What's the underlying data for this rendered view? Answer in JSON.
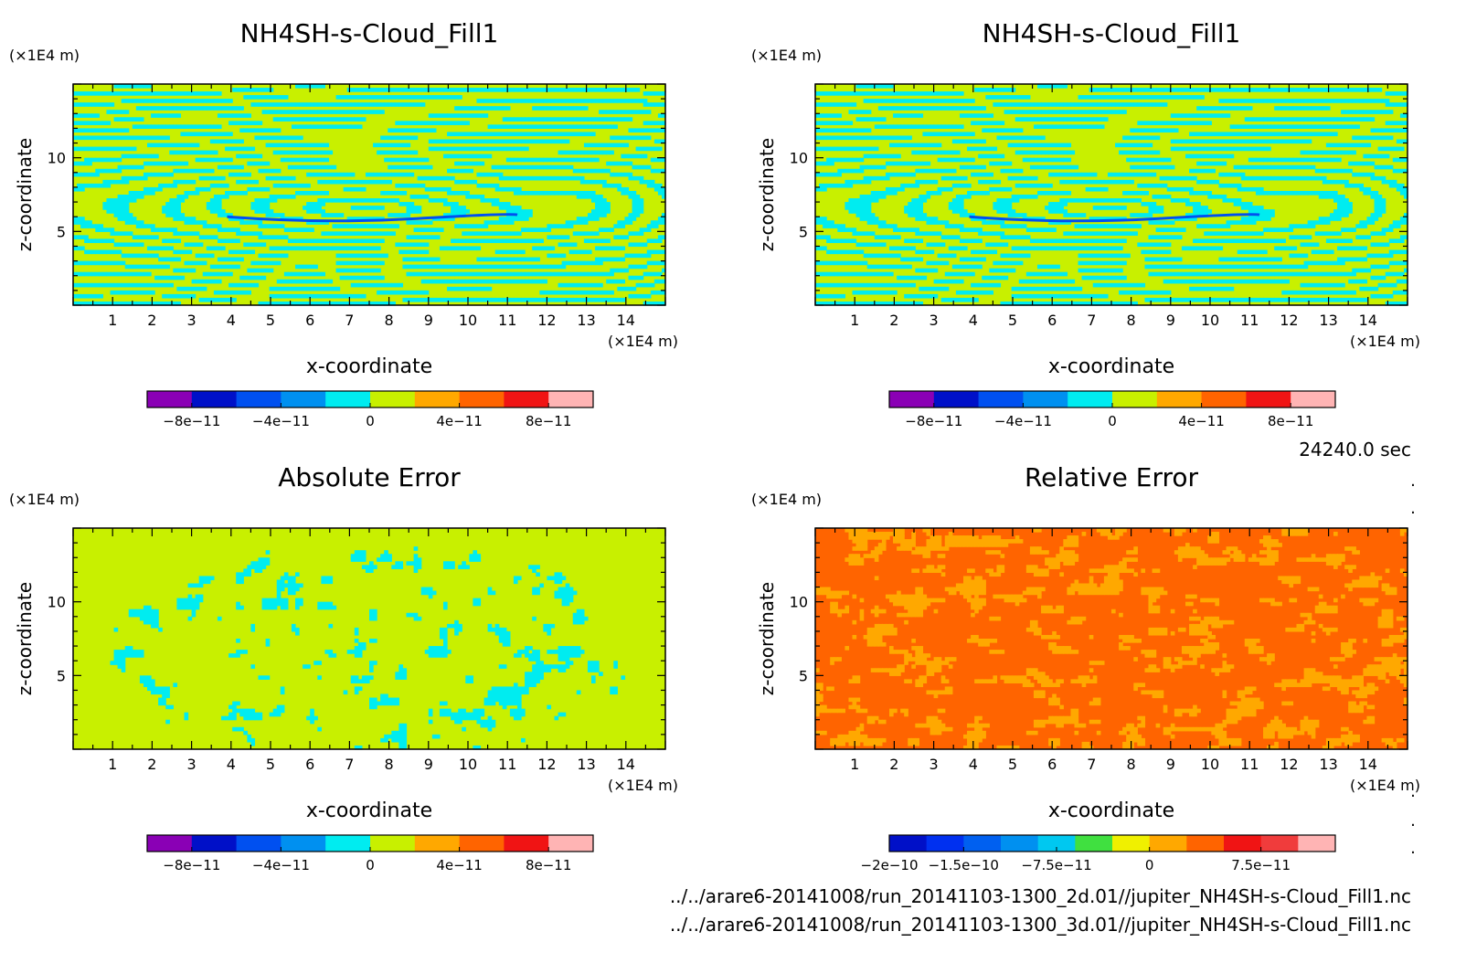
{
  "time_label": "24240.0 sec",
  "files": [
    "../../arare6-20141008/run_20141103-1300_2d.01//jupiter_NH4SH-s-Cloud_Fill1.nc",
    "../../arare6-20141008/run_20141103-1300_3d.01//jupiter_NH4SH-s-Cloud_Fill1.nc"
  ],
  "chart_data": [
    {
      "type": "heatmap",
      "title": "NH4SH-s-Cloud_Fill1",
      "xlabel": "x-coordinate",
      "ylabel": "z-coordinate",
      "x_unit": "(×1E4 m)",
      "y_unit": "(×1E4 m)",
      "xlim": [
        0,
        15
      ],
      "ylim": [
        0,
        15
      ],
      "x_ticks": [
        "1",
        "2",
        "3",
        "4",
        "5",
        "6",
        "7",
        "8",
        "9",
        "10",
        "11",
        "12",
        "13",
        "14"
      ],
      "y_ticks": [
        "5",
        "10"
      ],
      "pattern": "stripes",
      "colorbar": {
        "colors": [
          "#8a00b5",
          "#0010c8",
          "#0050f0",
          "#0090f0",
          "#00ecf0",
          "#c8f000",
          "#ffa800",
          "#ff6400",
          "#f01414",
          "#ffb4b4"
        ],
        "labels": [
          "−8e−11",
          "−4e−11",
          "0",
          "4e−11",
          "8e−11"
        ]
      }
    },
    {
      "type": "heatmap",
      "title": "NH4SH-s-Cloud_Fill1",
      "xlabel": "x-coordinate",
      "ylabel": "z-coordinate",
      "x_unit": "(×1E4 m)",
      "y_unit": "(×1E4 m)",
      "xlim": [
        0,
        15
      ],
      "ylim": [
        0,
        15
      ],
      "x_ticks": [
        "1",
        "2",
        "3",
        "4",
        "5",
        "6",
        "7",
        "8",
        "9",
        "10",
        "11",
        "12",
        "13",
        "14"
      ],
      "y_ticks": [
        "5",
        "10"
      ],
      "pattern": "stripes",
      "colorbar": {
        "colors": [
          "#8a00b5",
          "#0010c8",
          "#0050f0",
          "#0090f0",
          "#00ecf0",
          "#c8f000",
          "#ffa800",
          "#ff6400",
          "#f01414",
          "#ffb4b4"
        ],
        "labels": [
          "−8e−11",
          "−4e−11",
          "0",
          "4e−11",
          "8e−11"
        ]
      }
    },
    {
      "type": "heatmap",
      "title": "Absolute Error",
      "xlabel": "x-coordinate",
      "ylabel": "z-coordinate",
      "x_unit": "(×1E4 m)",
      "y_unit": "(×1E4 m)",
      "xlim": [
        0,
        15
      ],
      "ylim": [
        0,
        15
      ],
      "x_ticks": [
        "1",
        "2",
        "3",
        "4",
        "5",
        "6",
        "7",
        "8",
        "9",
        "10",
        "11",
        "12",
        "13",
        "14"
      ],
      "y_ticks": [
        "5",
        "10"
      ],
      "pattern": "speckle",
      "colorbar": {
        "colors": [
          "#8a00b5",
          "#0010c8",
          "#0050f0",
          "#0090f0",
          "#00ecf0",
          "#c8f000",
          "#ffa800",
          "#ff6400",
          "#f01414",
          "#ffb4b4"
        ],
        "labels": [
          "−8e−11",
          "−4e−11",
          "0",
          "4e−11",
          "8e−11"
        ]
      }
    },
    {
      "type": "heatmap",
      "title": "Relative Error",
      "xlabel": "x-coordinate",
      "ylabel": "z-coordinate",
      "x_unit": "(×1E4 m)",
      "y_unit": "(×1E4 m)",
      "xlim": [
        0,
        15
      ],
      "ylim": [
        0,
        15
      ],
      "x_ticks": [
        "1",
        "2",
        "3",
        "4",
        "5",
        "6",
        "7",
        "8",
        "9",
        "10",
        "11",
        "12",
        "13",
        "14"
      ],
      "y_ticks": [
        "5",
        "10"
      ],
      "pattern": "relative",
      "colorbar": {
        "colors": [
          "#0010c8",
          "#0030f0",
          "#0060f0",
          "#0090f0",
          "#00c8f0",
          "#40e040",
          "#f0f000",
          "#ffa800",
          "#ff6400",
          "#f01414",
          "#f03c3c",
          "#ffb4b4"
        ],
        "labels": [
          "−2e−10",
          "−1.5e−10",
          "−7.5e−11",
          "0",
          "7.5e−11"
        ]
      }
    }
  ]
}
